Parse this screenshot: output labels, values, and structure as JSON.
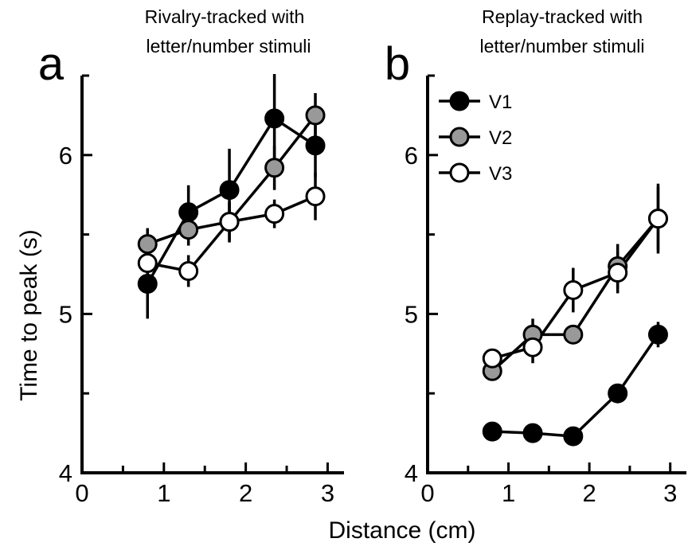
{
  "figure": {
    "xlabel": "Distance (cm)",
    "ylabel": "Time to peak (s)"
  },
  "chart_data": [
    {
      "type": "line",
      "panel_letter": "a",
      "title": "Rivalry-tracked with letter/number stimuli",
      "title_lines": [
        "Rivalry-tracked with",
        "letter/number stimuli"
      ],
      "xlabel": "Distance (cm)",
      "ylabel": "Time to peak (s)",
      "xlim": [
        0,
        3.2
      ],
      "ylim": [
        4,
        6.5
      ],
      "x_ticks": [
        0,
        1,
        2,
        3
      ],
      "y_ticks": [
        4,
        5,
        6
      ],
      "grid": false,
      "legend": false,
      "x": [
        0.8,
        1.3,
        1.8,
        2.35,
        2.85
      ],
      "series": [
        {
          "name": "V1",
          "color": "#000000",
          "values": [
            5.19,
            5.64,
            5.78,
            6.23,
            6.06
          ],
          "err": [
            0.22,
            0.17,
            0.26,
            0.28,
            0.2
          ]
        },
        {
          "name": "V2",
          "color": "#999999",
          "values": [
            5.44,
            5.53,
            5.58,
            5.92,
            6.25
          ],
          "err": [
            0.1,
            0.1,
            0.12,
            0.14,
            0.14
          ]
        },
        {
          "name": "V3",
          "color": "#ffffff",
          "values": [
            5.32,
            5.27,
            5.58,
            5.63,
            5.74
          ],
          "err": [
            0.12,
            0.1,
            0.13,
            0.09,
            0.15
          ]
        }
      ]
    },
    {
      "type": "line",
      "panel_letter": "b",
      "title": "Replay-tracked with letter/number stimuli",
      "title_lines": [
        "Replay-tracked with",
        "letter/number stimuli"
      ],
      "xlabel": "Distance (cm)",
      "ylabel": "Time to peak (s)",
      "xlim": [
        0,
        3.2
      ],
      "ylim": [
        4,
        6.5
      ],
      "x_ticks": [
        0,
        1,
        2,
        3
      ],
      "y_ticks": [
        4,
        5,
        6
      ],
      "grid": false,
      "legend": true,
      "legend_position": "top-left",
      "x": [
        0.8,
        1.3,
        1.8,
        2.35,
        2.85
      ],
      "series": [
        {
          "name": "V1",
          "color": "#000000",
          "values": [
            4.26,
            4.25,
            4.23,
            4.5,
            4.87
          ],
          "err": [
            0.03,
            0.03,
            0.04,
            0.05,
            0.08
          ]
        },
        {
          "name": "V2",
          "color": "#999999",
          "values": [
            4.64,
            4.87,
            4.87,
            5.3,
            5.6
          ],
          "err": [
            0.05,
            0.1,
            0.05,
            0.14,
            0.2
          ]
        },
        {
          "name": "V3",
          "color": "#ffffff",
          "values": [
            4.72,
            4.79,
            5.15,
            5.26,
            5.6
          ],
          "err": [
            0.06,
            0.1,
            0.14,
            0.13,
            0.22
          ]
        }
      ]
    }
  ]
}
